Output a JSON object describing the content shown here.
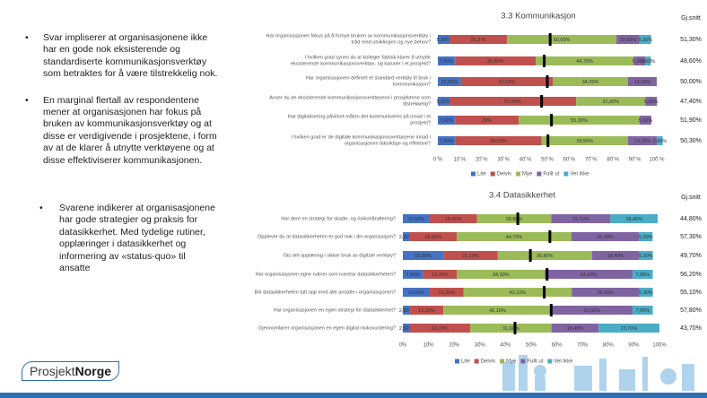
{
  "bullets": [
    "Svar impliserer at organisasjonene ikke har en gode nok eksisterende og standardiserte kommunikasjonsverktøy som betraktes for å være tilstrekkelig nok.",
    "En marginal flertall av respondentene mener at organisasjonen har fokus på bruken av kommunikasjonsverktøy og at disse er verdigivende i prosjektene, i form av at de klarer å utnytte verktøyene og at disse effektiviserer kommunikasjonen.",
    "Svarene indikerer at organisasjonene har gode strategier og praksis for datasikkerhet. Med tydelige rutiner, opplæringer i datasikkerhet og informering av «status-quo» til ansatte"
  ],
  "logo": {
    "part1": "Prosjekt",
    "part2": "Norge"
  },
  "chart_data": [
    {
      "type": "stacked_bar_h",
      "title": "3.3 Kommunikasjon",
      "averages_title": "Gj.snitt",
      "categories": [
        "Har organisasjonen fokus på å fornye bruken av kommunikasjonsverktøy i tråd med utviklingen og nye behov?",
        "I hvilken grad synes du at kolleger faktisk klarer å utnytte eksisterende kommunikasjonsverktøy- og kanaler i et prosjekt?",
        "Har organisasjonen definert et standard verktøy til bruk i kommunikasjon?",
        "Anser du de eksisterende kommunikasjonsverktøyene i prosjektene som tilstrekkelig?",
        "Har digitalisering påvirket måten det kommuniseres på innad i et prosjekt?",
        "I hvilken grad er de digitale kommunikasjonsverktøyene innad i organisasjonen tidsriktige og effektive?"
      ],
      "series": [
        {
          "name": "Lite",
          "color": "#4472c4",
          "values": [
            5.3,
            7.9,
            10.5,
            5.3,
            7.9,
            7.9
          ],
          "value_labels": [
            "5,30%",
            "7,90%",
            "10,50%",
            "5,30%",
            "7,90%",
            "7,90%"
          ]
        },
        {
          "name": "Delvis",
          "color": "#c0504d",
          "values": [
            26.3,
            36.8,
            42.1,
            57.9,
            29,
            39.5
          ],
          "value_labels": [
            "26,3 %",
            "36,80%",
            "42,10%",
            "57,90%",
            "29%",
            "39,50%"
          ]
        },
        {
          "name": "Mye",
          "color": "#9bbb59",
          "values": [
            50,
            44.7,
            34.2,
            31.6,
            55.3,
            39.5
          ],
          "value_labels": [
            "50,00%",
            "44,70%",
            "34,20%",
            "31,60%",
            "55,30%",
            "39,50%"
          ]
        },
        {
          "name": "Fullt ut",
          "color": "#8064a2",
          "values": [
            10.5,
            5.3,
            13.2,
            5.3,
            5.3,
            13.2
          ],
          "value_labels": [
            "10,50%",
            "5,30%",
            "13,20%",
            "5,30%",
            "5,30%",
            "13,20%"
          ]
        },
        {
          "name": "Vet ikke",
          "color": "#4bacc6",
          "values": [
            5.3,
            2.6,
            null,
            null,
            null,
            2.6
          ],
          "value_labels": [
            "5,30%",
            "2,60%",
            null,
            null,
            null,
            "2,60%"
          ]
        }
      ],
      "averages": [
        51.3,
        48.6,
        50,
        47.4,
        51.9,
        50.3
      ],
      "averages_labels": [
        "51,30%",
        "48,60%",
        "50,00%",
        "47,40%",
        "51,90%",
        "50,30%"
      ],
      "xlim": [
        0,
        100
      ],
      "xticks": [
        {
          "value": 0,
          "label": "0 %"
        },
        {
          "value": 10,
          "label": "10 %"
        },
        {
          "value": 20,
          "label": "20 %"
        },
        {
          "value": 30,
          "label": "30 %"
        },
        {
          "value": 40,
          "label": "40 %"
        },
        {
          "value": 50,
          "label": "50 %"
        },
        {
          "value": 60,
          "label": "60 %"
        },
        {
          "value": 70,
          "label": "70 %"
        },
        {
          "value": 80,
          "label": "80 %"
        },
        {
          "value": 90,
          "label": "90 %"
        },
        {
          "value": 100,
          "label": "100 %"
        }
      ]
    },
    {
      "type": "stacked_bar_h",
      "title": "3.4 Datasikkerhet",
      "averages_title": "Gj.snitt",
      "categories": [
        "Har dere en strategi for skade- og risikohåndtering?",
        "Opplever du at datasikkerheten er god nok i din organisasjon?",
        "Gis det opplæring i sikker bruk av digitale verktøy?",
        "Har organisasjonen egne rutiner som ivaretar datasikkerheten?",
        "Blir datasikkerheten tatt opp med alle ansatte i organisasjonen?",
        "Har organisasjonen en egen strategi for datasikkerhet?",
        "Gjennomfører organisasjonen en egen digital risikovurdering?"
      ],
      "series": [
        {
          "name": "Lite",
          "color": "#4472c4",
          "values": [
            10.5,
            2.6,
            15.8,
            7.9,
            10.5,
            2.6,
            2.6
          ],
          "value_labels": [
            "10,50%",
            "2,60%",
            "15,80%",
            "7,90%",
            "10,50%",
            "2,60%",
            "2,60%"
          ]
        },
        {
          "name": "Delvis",
          "color": "#c0504d",
          "values": [
            18.4,
            18.4,
            21.1,
            13.2,
            13.2,
            13.2,
            23.7
          ],
          "value_labels": [
            "18,40%",
            "18,40%",
            "21,10%",
            "13,20%",
            "13,20%",
            "13,20%",
            "23,70%"
          ]
        },
        {
          "name": "Mye",
          "color": "#9bbb59",
          "values": [
            28.9,
            44.7,
            36.8,
            34.2,
            42.1,
            42.1,
            31.6
          ],
          "value_labels": [
            "28,90%",
            "44,70%",
            "36,80%",
            "34,20%",
            "42,10%",
            "42,10%",
            "31,60%"
          ]
        },
        {
          "name": "Fullt ut",
          "color": "#8064a2",
          "values": [
            23.1,
            26.3,
            18.4,
            34.2,
            26.3,
            31.6,
            18.4
          ],
          "value_labels": [
            "23,10%",
            "26,30%",
            "18,40%",
            "34,20%",
            "26,30%",
            "31,60%",
            "18,40%"
          ]
        },
        {
          "name": "Vet ikke",
          "color": "#4bacc6",
          "values": [
            18.4,
            5.3,
            5.3,
            7.9,
            5.3,
            7.9,
            23.7
          ],
          "value_labels": [
            "18,40%",
            "5,30%",
            "5,30%",
            "7,90%",
            "5,30%",
            "7,90%",
            "23,70%"
          ]
        }
      ],
      "averages": [
        44.8,
        57.3,
        49.7,
        56.2,
        55.1,
        57.8,
        43.7
      ],
      "averages_labels": [
        "44,80%",
        "57,30%",
        "49,70%",
        "56,20%",
        "55,10%",
        "57,80%",
        "43,70%"
      ],
      "xlim": [
        0,
        100
      ],
      "xticks": [
        {
          "value": 0,
          "label": "0%"
        },
        {
          "value": 10,
          "label": "10%"
        },
        {
          "value": 20,
          "label": "20%"
        },
        {
          "value": 30,
          "label": "30%"
        },
        {
          "value": 40,
          "label": "40%"
        },
        {
          "value": 50,
          "label": "50%"
        },
        {
          "value": 60,
          "label": "60%"
        },
        {
          "value": 70,
          "label": "70%"
        },
        {
          "value": 80,
          "label": "80%"
        },
        {
          "value": 90,
          "label": "90%"
        },
        {
          "value": 100,
          "label": "100%"
        }
      ]
    }
  ]
}
